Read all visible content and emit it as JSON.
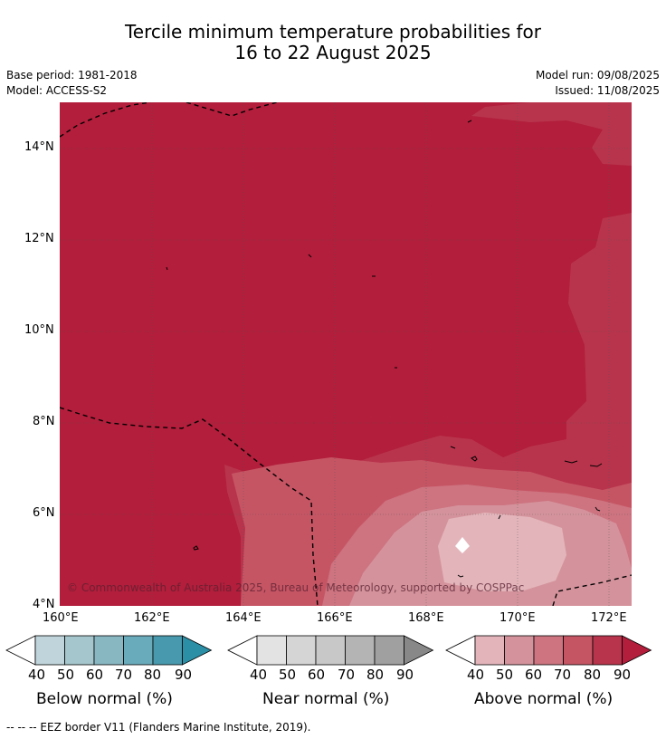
{
  "title_line1": "Tercile minimum temperature probabilities for",
  "title_line2": "16 to 22 August 2025",
  "base_period": "Base period: 1981-2018",
  "model": "Model: ACCESS-S2",
  "model_run": "Model run: 09/08/2025",
  "issued": "Issued: 11/08/2025",
  "copyright": "© Commonwealth of Australia 2025, Bureau of Meteorology, supported by COSPPac",
  "lat_labels": [
    "14°N",
    "12°N",
    "10°N",
    "8°N",
    "6°N",
    "4°N"
  ],
  "lon_labels": [
    "160°E",
    "162°E",
    "164°E",
    "166°E",
    "168°E",
    "170°E",
    "172°E"
  ],
  "colorbars": [
    {
      "title": "Below normal (%)",
      "ticks": [
        "40",
        "50",
        "60",
        "70",
        "80",
        "90"
      ],
      "colors": [
        "#ffffff",
        "#bfd4db",
        "#a5c6cc",
        "#88b7c2",
        "#6aabbb",
        "#4899ad",
        "#2b8fa5"
      ]
    },
    {
      "title": "Near normal (%)",
      "ticks": [
        "40",
        "50",
        "60",
        "70",
        "80",
        "90"
      ],
      "colors": [
        "#ffffff",
        "#e3e3e3",
        "#d5d5d5",
        "#c8c8c8",
        "#b4b4b4",
        "#a0a0a0",
        "#888888"
      ]
    },
    {
      "title": "Above normal (%)",
      "ticks": [
        "40",
        "50",
        "60",
        "70",
        "80",
        "90"
      ],
      "colors": [
        "#ffffff",
        "#e3b5bb",
        "#d4939c",
        "#cd7480",
        "#c65564",
        "#b8344c",
        "#b21e3b"
      ]
    }
  ],
  "footnote": "--  --  -- EEZ border V11 (Flanders Marine Institute, 2019)."
}
